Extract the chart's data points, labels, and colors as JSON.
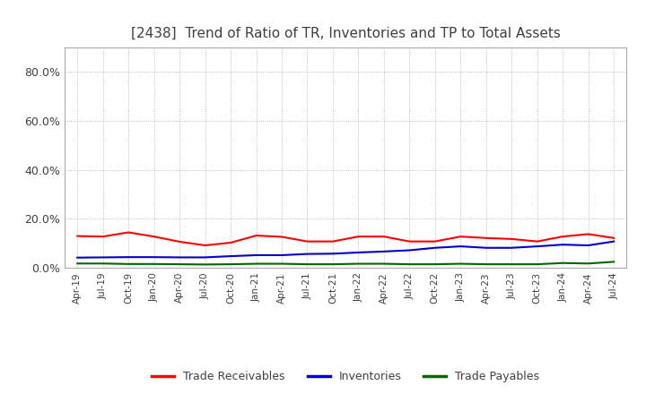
{
  "title": "[2438]  Trend of Ratio of TR, Inventories and TP to Total Assets",
  "title_color": "#404040",
  "title_fontsize": 11,
  "background_color": "#ffffff",
  "plot_bg_color": "#ffffff",
  "grid_color": "#aaaaaa",
  "ylim": [
    0.0,
    0.9
  ],
  "yticks": [
    0.0,
    0.2,
    0.4,
    0.6,
    0.8
  ],
  "dates": [
    "Apr-19",
    "Jul-19",
    "Oct-19",
    "Jan-20",
    "Apr-20",
    "Jul-20",
    "Oct-20",
    "Jan-21",
    "Apr-21",
    "Jul-21",
    "Oct-21",
    "Jan-22",
    "Apr-22",
    "Jul-22",
    "Oct-22",
    "Jan-23",
    "Apr-23",
    "Jul-23",
    "Oct-23",
    "Jan-24",
    "Apr-24",
    "Jul-24"
  ],
  "trade_receivables": [
    0.13,
    0.128,
    0.145,
    0.128,
    0.107,
    0.092,
    0.103,
    0.132,
    0.127,
    0.108,
    0.108,
    0.128,
    0.128,
    0.108,
    0.108,
    0.128,
    0.122,
    0.118,
    0.108,
    0.128,
    0.138,
    0.122
  ],
  "inventories": [
    0.042,
    0.043,
    0.044,
    0.044,
    0.043,
    0.043,
    0.048,
    0.052,
    0.052,
    0.057,
    0.058,
    0.063,
    0.067,
    0.072,
    0.082,
    0.088,
    0.082,
    0.082,
    0.088,
    0.095,
    0.092,
    0.108
  ],
  "trade_payables": [
    0.018,
    0.018,
    0.016,
    0.016,
    0.015,
    0.014,
    0.015,
    0.017,
    0.017,
    0.015,
    0.015,
    0.017,
    0.017,
    0.015,
    0.015,
    0.017,
    0.015,
    0.015,
    0.015,
    0.02,
    0.018,
    0.025
  ],
  "tr_color": "#ff0000",
  "inv_color": "#0000cc",
  "tp_color": "#006600",
  "line_width": 1.5,
  "legend_labels": [
    "Trade Receivables",
    "Inventories",
    "Trade Payables"
  ],
  "xlabel": "",
  "ylabel": ""
}
